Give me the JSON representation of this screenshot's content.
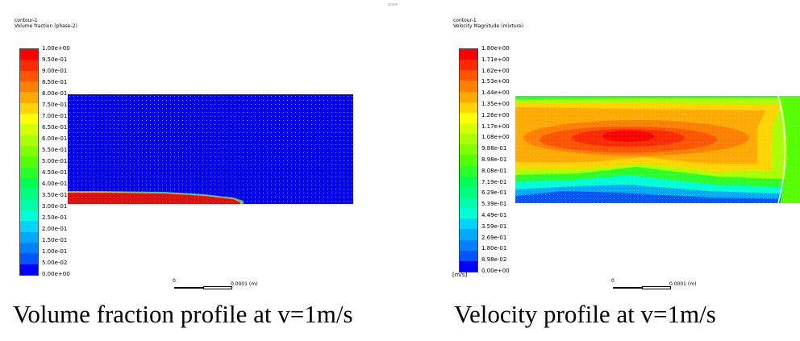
{
  "left": {
    "header_line1": "contour-1",
    "header_line2": "Volume fraction (phase-2)",
    "legend_ticks": [
      "1.00e+00",
      "9.50e-01",
      "9.00e-01",
      "8.50e-01",
      "8.00e-01",
      "7.50e-01",
      "7.00e-01",
      "6.50e-01",
      "6.00e-01",
      "5.50e-01",
      "5.00e-01",
      "4.50e-01",
      "4.00e-01",
      "3.50e-01",
      "3.00e-01",
      "2.50e-01",
      "2.00e-01",
      "1.50e-01",
      "1.00e-01",
      "5.00e-02",
      "0.00e+00"
    ],
    "scale_zero": "0",
    "scale_label": "0.0001 (m)",
    "caption": "Volume fraction profile at v=1m/s"
  },
  "right": {
    "header_line1": "contour-1",
    "header_line2": "Velocity Magnitude (mixture)",
    "legend_ticks": [
      "1.80e+00",
      "1.71e+00",
      "1.62e+00",
      "1.53e+00",
      "1.44e+00",
      "1.35e+00",
      "1.26e+00",
      "1.17e+00",
      "1.08e+00",
      "9.88e-01",
      "8.98e-01",
      "8.08e-01",
      "7.19e-01",
      "6.29e-01",
      "5.39e-01",
      "4.49e-01",
      "3.59e-01",
      "2.69e-01",
      "1.80e-01",
      "8.98e-02",
      "0.00e+00"
    ],
    "unit": "[m/s]",
    "scale_zero": "0",
    "scale_label": "0.0001 (m)",
    "caption": "Velocity profile at v=1m/s"
  },
  "colors": {
    "colormap": [
      "#ff0000",
      "#ff2a00",
      "#ff5500",
      "#ff7f00",
      "#ffaa00",
      "#ffd400",
      "#ffff00",
      "#d4ff00",
      "#aaff00",
      "#7fff00",
      "#55ff00",
      "#2aff2a",
      "#00ff55",
      "#00ff7f",
      "#00ffaa",
      "#00ffd4",
      "#00d4ff",
      "#00aaff",
      "#007fff",
      "#0055ff",
      "#0000ff"
    ]
  }
}
